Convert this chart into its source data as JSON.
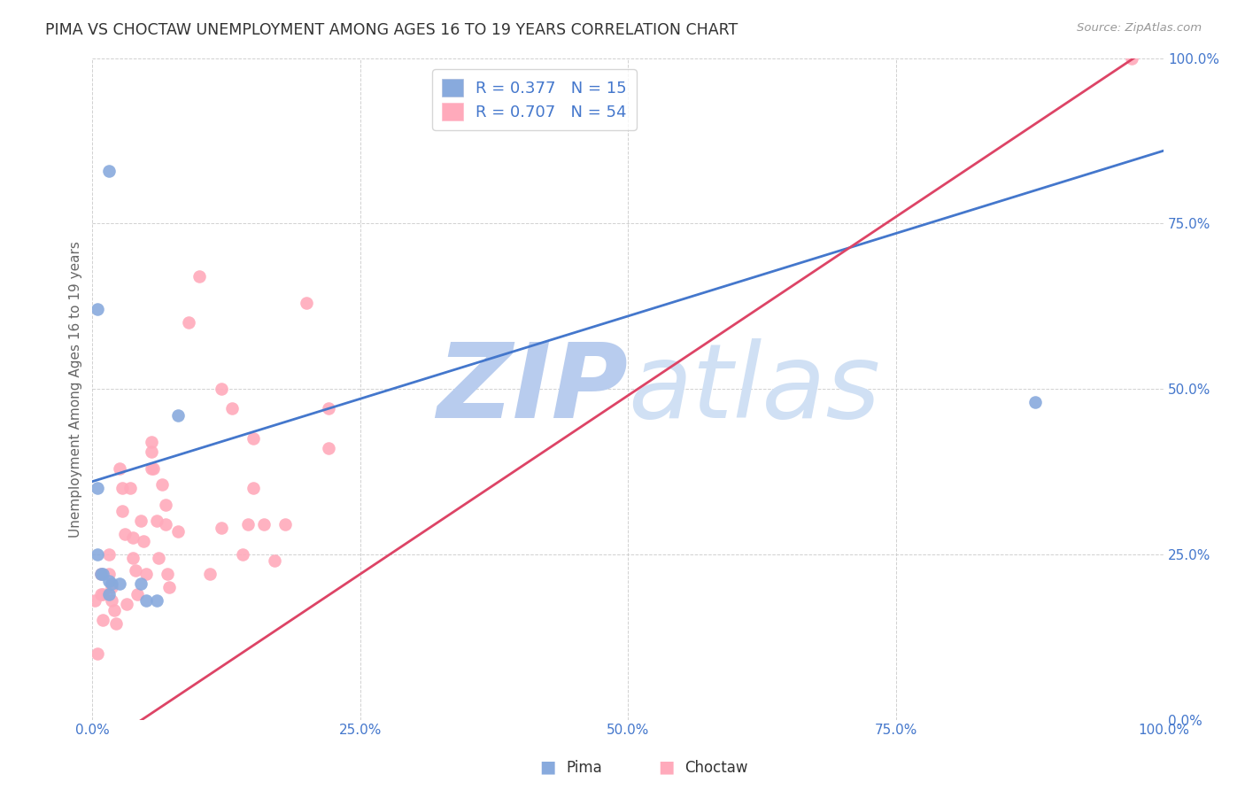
{
  "title": "PIMA VS CHOCTAW UNEMPLOYMENT AMONG AGES 16 TO 19 YEARS CORRELATION CHART",
  "source": "Source: ZipAtlas.com",
  "ylabel": "Unemployment Among Ages 16 to 19 years",
  "xlim": [
    0,
    1
  ],
  "ylim": [
    0,
    1
  ],
  "xticks": [
    0.0,
    0.25,
    0.5,
    0.75,
    1.0
  ],
  "yticks": [
    0.0,
    0.25,
    0.5,
    0.75,
    1.0
  ],
  "xtick_labels": [
    "0.0%",
    "25.0%",
    "50.0%",
    "75.0%",
    "100.0%"
  ],
  "ytick_labels": [
    "0.0%",
    "25.0%",
    "50.0%",
    "75.0%",
    "100.0%"
  ],
  "pima_color": "#88AADD",
  "choctaw_color": "#FFAABB",
  "pima_R": 0.377,
  "pima_N": 15,
  "choctaw_R": 0.707,
  "choctaw_N": 54,
  "pima_x": [
    0.015,
    0.005,
    0.005,
    0.005,
    0.008,
    0.01,
    0.015,
    0.015,
    0.018,
    0.025,
    0.045,
    0.05,
    0.06,
    0.08,
    0.88
  ],
  "pima_y": [
    0.83,
    0.62,
    0.35,
    0.25,
    0.22,
    0.22,
    0.21,
    0.19,
    0.205,
    0.205,
    0.205,
    0.18,
    0.18,
    0.46,
    0.48
  ],
  "choctaw_x": [
    0.002,
    0.008,
    0.008,
    0.01,
    0.01,
    0.005,
    0.015,
    0.015,
    0.018,
    0.018,
    0.02,
    0.022,
    0.025,
    0.028,
    0.028,
    0.03,
    0.032,
    0.035,
    0.038,
    0.038,
    0.04,
    0.042,
    0.045,
    0.048,
    0.05,
    0.055,
    0.057,
    0.06,
    0.062,
    0.065,
    0.068,
    0.068,
    0.07,
    0.072,
    0.08,
    0.09,
    0.1,
    0.12,
    0.13,
    0.15,
    0.18,
    0.2,
    0.22,
    0.22,
    0.145,
    0.14,
    0.16,
    0.17,
    0.12,
    0.11,
    0.055,
    0.055,
    0.15,
    0.97
  ],
  "choctaw_y": [
    0.18,
    0.22,
    0.19,
    0.19,
    0.15,
    0.1,
    0.25,
    0.22,
    0.2,
    0.18,
    0.165,
    0.145,
    0.38,
    0.35,
    0.315,
    0.28,
    0.175,
    0.35,
    0.275,
    0.245,
    0.225,
    0.19,
    0.3,
    0.27,
    0.22,
    0.42,
    0.38,
    0.3,
    0.245,
    0.355,
    0.325,
    0.295,
    0.22,
    0.2,
    0.285,
    0.6,
    0.67,
    0.5,
    0.47,
    0.425,
    0.295,
    0.63,
    0.47,
    0.41,
    0.295,
    0.25,
    0.295,
    0.24,
    0.29,
    0.22,
    0.38,
    0.405,
    0.35,
    1.0
  ],
  "pima_line_color": "#4477CC",
  "choctaw_line_color": "#DD4466",
  "background_color": "#FFFFFF",
  "watermark_color": "#C8D8F0",
  "pima_line_intercept": 0.36,
  "pima_line_slope": 0.5,
  "choctaw_line_intercept": -0.05,
  "choctaw_line_slope": 1.08
}
